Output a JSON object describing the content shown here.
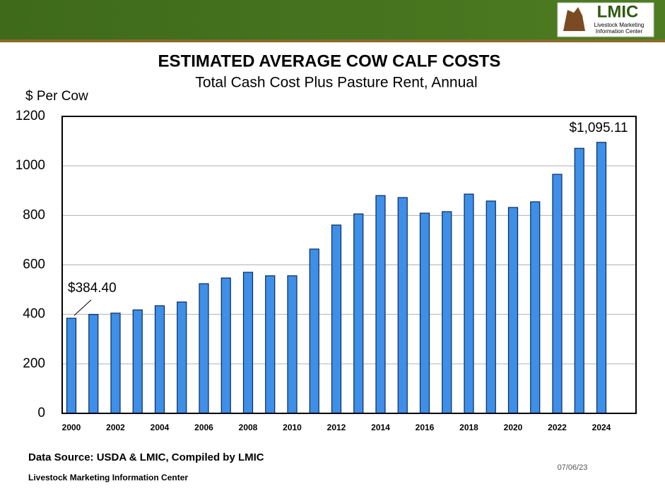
{
  "logo": {
    "name": "LMIC",
    "line1": "Livestock Marketing",
    "line2": "Information Center"
  },
  "chart_data": {
    "type": "bar",
    "title": "ESTIMATED AVERAGE COW CALF COSTS",
    "subtitle": "Total Cash Cost Plus Pasture Rent, Annual",
    "y_label": "$ Per Cow",
    "categories": [
      "2000",
      null,
      "2002",
      null,
      "2004",
      null,
      "2006",
      null,
      "2008",
      null,
      "2010",
      null,
      "2012",
      null,
      "2014",
      null,
      "2016",
      null,
      "2018",
      null,
      "2020",
      null,
      "2022",
      null,
      "2024"
    ],
    "values": [
      384.4,
      400,
      405,
      418,
      435,
      450,
      524,
      547,
      570,
      556,
      556,
      664,
      761,
      806,
      880,
      872,
      809,
      815,
      886,
      858,
      832,
      855,
      966,
      1071,
      1095.11
    ],
    "value_labels": [
      "$384.40",
      null,
      null,
      null,
      null,
      null,
      null,
      null,
      null,
      null,
      null,
      null,
      null,
      null,
      null,
      null,
      null,
      null,
      null,
      null,
      null,
      null,
      null,
      null,
      "$1,095.11"
    ],
    "color": "#3d8fe8",
    "ylim": [
      0,
      1200
    ],
    "yticks": [
      0,
      200,
      400,
      600,
      800,
      1000,
      1200
    ],
    "grid": true
  },
  "footer": {
    "source": "Data Source: USDA & LMIC, Compiled by LMIC",
    "org": "Livestock Marketing Information Center",
    "date": "07/06/23"
  }
}
